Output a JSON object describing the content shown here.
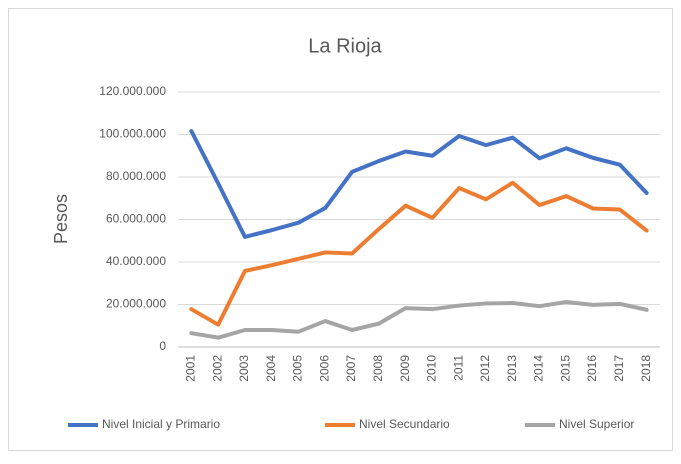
{
  "chart_data": {
    "type": "line",
    "title": "La Rioja",
    "y_label": "Pesos",
    "categories": [
      "2001",
      "2002",
      "2003",
      "2004",
      "2005",
      "2006",
      "2007",
      "2008",
      "2009",
      "2010",
      "2011",
      "2012",
      "2013",
      "2014",
      "2015",
      "2016",
      "2017",
      "2018"
    ],
    "series": [
      {
        "name": "Nivel Inicial y Primario",
        "color": "#4472c4",
        "values": [
          101600000,
          77000000,
          51800000,
          55000000,
          58500000,
          65400000,
          82400000,
          87500000,
          92000000,
          90000000,
          99300000,
          95000000,
          98500000,
          88800000,
          93500000,
          89000000,
          85800000,
          72500000
        ]
      },
      {
        "name": "Nivel Secundario",
        "color": "#ed7d31",
        "values": [
          17800000,
          10500000,
          35800000,
          38500000,
          41500000,
          44500000,
          44000000,
          55500000,
          66500000,
          60800000,
          74800000,
          69500000,
          77300000,
          66800000,
          71000000,
          65200000,
          64700000,
          54800000
        ]
      },
      {
        "name": "Nivel Superior",
        "color": "#a5a5a5",
        "values": [
          6500000,
          4400000,
          8000000,
          8000000,
          7200000,
          12200000,
          8000000,
          11000000,
          18300000,
          17800000,
          19500000,
          20500000,
          20700000,
          19200000,
          21200000,
          19800000,
          20300000,
          17500000
        ]
      }
    ],
    "ylim": [
      0,
      120000000
    ],
    "yticks": [
      0,
      {
        "value": 20000000,
        "label": "20.000.000"
      },
      {
        "value": 40000000,
        "label": "40.000.000"
      },
      {
        "value": 60000000,
        "label": "60.000.000"
      },
      {
        "value": 80000000,
        "label": "80.000.000"
      },
      {
        "value": 100000000,
        "label": "100.000.000"
      },
      {
        "value": 120000000,
        "label": "120.000.000"
      }
    ],
    "grid": true,
    "legend": "bottom"
  }
}
